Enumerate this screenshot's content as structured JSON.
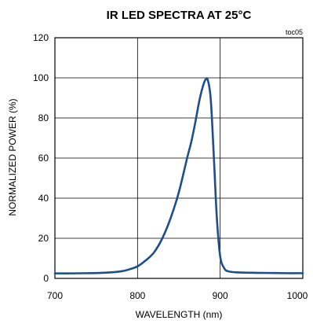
{
  "chart_data": {
    "type": "line",
    "title": "IR LED SPECTRA AT 25°C",
    "figure_tag": "toc05",
    "xlabel": "WAVELENGTH (nm)",
    "ylabel": "NORMALIZED POWER (%)",
    "xlim": [
      700,
      1000
    ],
    "ylim": [
      0,
      120
    ],
    "x_ticks": [
      700,
      800,
      900,
      1000
    ],
    "y_ticks": [
      0,
      20,
      40,
      60,
      80,
      100,
      120
    ],
    "grid": true,
    "line_color": "#1f4e8c",
    "series": [
      {
        "x": [
          700,
          720,
          740,
          760,
          780,
          790,
          800,
          810,
          820,
          830,
          840,
          850,
          860,
          865,
          870,
          875,
          880,
          883,
          885,
          888,
          890,
          893,
          896,
          900,
          905,
          910,
          920,
          940,
          960,
          980,
          1000
        ],
        "y": [
          2.5,
          2.5,
          2.6,
          2.8,
          3.5,
          4.5,
          6,
          9,
          13,
          20,
          30,
          43,
          60,
          68,
          78,
          89,
          97,
          99.5,
          99,
          92,
          80,
          55,
          30,
          11,
          5,
          3.5,
          3,
          2.8,
          2.7,
          2.6,
          2.6
        ]
      }
    ]
  }
}
